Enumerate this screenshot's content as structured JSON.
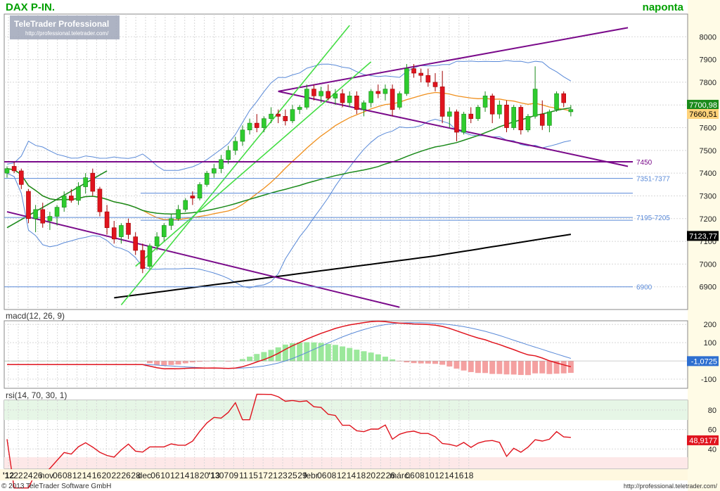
{
  "header": {
    "title": "DAX P-IN.",
    "period": "naponta",
    "logo_main": "TeleTrader Professional",
    "logo_url": "http://professional.teletrader.com/"
  },
  "footer": {
    "copyright": "© 2013 TeleTrader Software GmbH",
    "url": "http://professional.teletrader.com/"
  },
  "colors": {
    "title_green": "#00a000",
    "up_candle": "#2ecc2e",
    "down_candle": "#e0141e",
    "channel_purple": "#7a0a8a",
    "trend_green": "#44dd44",
    "bollinger_blue": "#5a8ad8",
    "ma20_orange": "#f0901e",
    "ma50_green": "#1a8a1a",
    "ma200_black": "#000000",
    "macd_red": "#e0141e",
    "macd_signal_blue": "#5a8ad8",
    "rsi_red": "#e0141e"
  },
  "chart_data": [
    {
      "type": "candlestick",
      "ylim": [
        6800,
        8100
      ],
      "yticks": [
        6900,
        7000,
        7100,
        7200,
        7300,
        7400,
        7500,
        7600,
        7700,
        7800,
        7900,
        8000
      ],
      "x_labels": [
        "'12",
        "22",
        "24",
        "26",
        "nov.",
        "06",
        "08",
        "12",
        "14",
        "16",
        "20",
        "22",
        "26",
        "28",
        "dec.",
        "06",
        "10",
        "12",
        "14",
        "18",
        "20",
        "'13",
        "07",
        "09",
        "11",
        "15",
        "17",
        "21",
        "23",
        "25",
        "29",
        "febr.",
        "06",
        "08",
        "12",
        "14",
        "18",
        "20",
        "22",
        "26",
        "márc.",
        "06",
        "08",
        "10",
        "12",
        "14",
        "16",
        "18"
      ],
      "grid": true,
      "candles_ohlc": [
        [
          7400,
          7430,
          7380,
          7420
        ],
        [
          7430,
          7450,
          7400,
          7410
        ],
        [
          7410,
          7420,
          7330,
          7350
        ],
        [
          7320,
          7330,
          7180,
          7200
        ],
        [
          7200,
          7260,
          7140,
          7240
        ],
        [
          7240,
          7270,
          7160,
          7180
        ],
        [
          7190,
          7230,
          7150,
          7210
        ],
        [
          7210,
          7260,
          7170,
          7250
        ],
        [
          7250,
          7320,
          7230,
          7300
        ],
        [
          7300,
          7330,
          7270,
          7280
        ],
        [
          7280,
          7360,
          7260,
          7340
        ],
        [
          7340,
          7400,
          7310,
          7380
        ],
        [
          7400,
          7420,
          7300,
          7320
        ],
        [
          7330,
          7340,
          7210,
          7230
        ],
        [
          7230,
          7260,
          7130,
          7160
        ],
        [
          7160,
          7190,
          7090,
          7110
        ],
        [
          7120,
          7180,
          7090,
          7170
        ],
        [
          7180,
          7200,
          7110,
          7130
        ],
        [
          7120,
          7140,
          7040,
          7060
        ],
        [
          7060,
          7090,
          6960,
          6980
        ],
        [
          6990,
          7090,
          6980,
          7080
        ],
        [
          7080,
          7140,
          7060,
          7120
        ],
        [
          7120,
          7180,
          7100,
          7170
        ],
        [
          7170,
          7220,
          7150,
          7200
        ],
        [
          7200,
          7260,
          7190,
          7240
        ],
        [
          7240,
          7290,
          7230,
          7280
        ],
        [
          7300,
          7320,
          7260,
          7290
        ],
        [
          7290,
          7360,
          7280,
          7350
        ],
        [
          7350,
          7410,
          7340,
          7400
        ],
        [
          7400,
          7440,
          7380,
          7420
        ],
        [
          7420,
          7480,
          7400,
          7460
        ],
        [
          7460,
          7520,
          7440,
          7500
        ],
        [
          7500,
          7560,
          7480,
          7540
        ],
        [
          7540,
          7610,
          7520,
          7590
        ],
        [
          7590,
          7640,
          7570,
          7620
        ],
        [
          7620,
          7660,
          7580,
          7600
        ],
        [
          7600,
          7650,
          7580,
          7640
        ],
        [
          7640,
          7690,
          7620,
          7660
        ],
        [
          7660,
          7680,
          7620,
          7650
        ],
        [
          7650,
          7680,
          7610,
          7630
        ],
        [
          7630,
          7700,
          7620,
          7680
        ],
        [
          7680,
          7700,
          7660,
          7690
        ],
        [
          7690,
          7790,
          7680,
          7770
        ],
        [
          7770,
          7790,
          7720,
          7740
        ],
        [
          7740,
          7780,
          7710,
          7760
        ],
        [
          7760,
          7790,
          7720,
          7730
        ],
        [
          7730,
          7770,
          7700,
          7750
        ],
        [
          7750,
          7770,
          7690,
          7710
        ],
        [
          7710,
          7760,
          7690,
          7740
        ],
        [
          7740,
          7760,
          7660,
          7680
        ],
        [
          7680,
          7720,
          7650,
          7710
        ],
        [
          7710,
          7770,
          7690,
          7760
        ],
        [
          7760,
          7790,
          7730,
          7750
        ],
        [
          7750,
          7790,
          7720,
          7770
        ],
        [
          7770,
          7790,
          7650,
          7680
        ],
        [
          7690,
          7760,
          7680,
          7750
        ],
        [
          7750,
          7880,
          7740,
          7860
        ],
        [
          7860,
          7880,
          7820,
          7840
        ],
        [
          7840,
          7860,
          7800,
          7830
        ],
        [
          7830,
          7860,
          7780,
          7800
        ],
        [
          7800,
          7840,
          7760,
          7780
        ],
        [
          7780,
          7850,
          7620,
          7650
        ],
        [
          7650,
          7690,
          7600,
          7670
        ],
        [
          7670,
          7680,
          7540,
          7580
        ],
        [
          7580,
          7670,
          7570,
          7660
        ],
        [
          7660,
          7690,
          7620,
          7640
        ],
        [
          7640,
          7700,
          7630,
          7690
        ],
        [
          7690,
          7760,
          7670,
          7740
        ],
        [
          7740,
          7750,
          7620,
          7660
        ],
        [
          7660,
          7720,
          7640,
          7700
        ],
        [
          7700,
          7720,
          7580,
          7600
        ],
        [
          7600,
          7700,
          7590,
          7690
        ],
        [
          7690,
          7700,
          7570,
          7590
        ],
        [
          7590,
          7660,
          7580,
          7650
        ],
        [
          7650,
          7870,
          7640,
          7770
        ],
        [
          7660,
          7720,
          7590,
          7610
        ],
        [
          7610,
          7680,
          7580,
          7670
        ],
        [
          7680,
          7760,
          7670,
          7750
        ],
        [
          7750,
          7760,
          7690,
          7710
        ],
        [
          7670,
          7700,
          7650,
          7680
        ]
      ],
      "horizontal_levels": [
        {
          "label": "7450",
          "value": 7450
        },
        {
          "label": "7351-7377",
          "value": 7377
        },
        {
          "label": "7195-7205",
          "value": 7205
        },
        {
          "label": "6900",
          "value": 6900
        }
      ],
      "last_values": {
        "ma_green": "7700,98",
        "close": "7660,51",
        "ma200": "7123,77"
      }
    },
    {
      "type": "line",
      "name": "macd(12, 26, 9)",
      "ylim": [
        -150,
        220
      ],
      "yticks": [
        -100,
        100,
        200
      ],
      "last_value": "-1,0725"
    },
    {
      "type": "line",
      "name": "rsi(14, 70, 30, 1)",
      "ylim": [
        20,
        90
      ],
      "yticks": [
        40,
        60,
        80
      ],
      "last_value": "48,9177"
    }
  ]
}
